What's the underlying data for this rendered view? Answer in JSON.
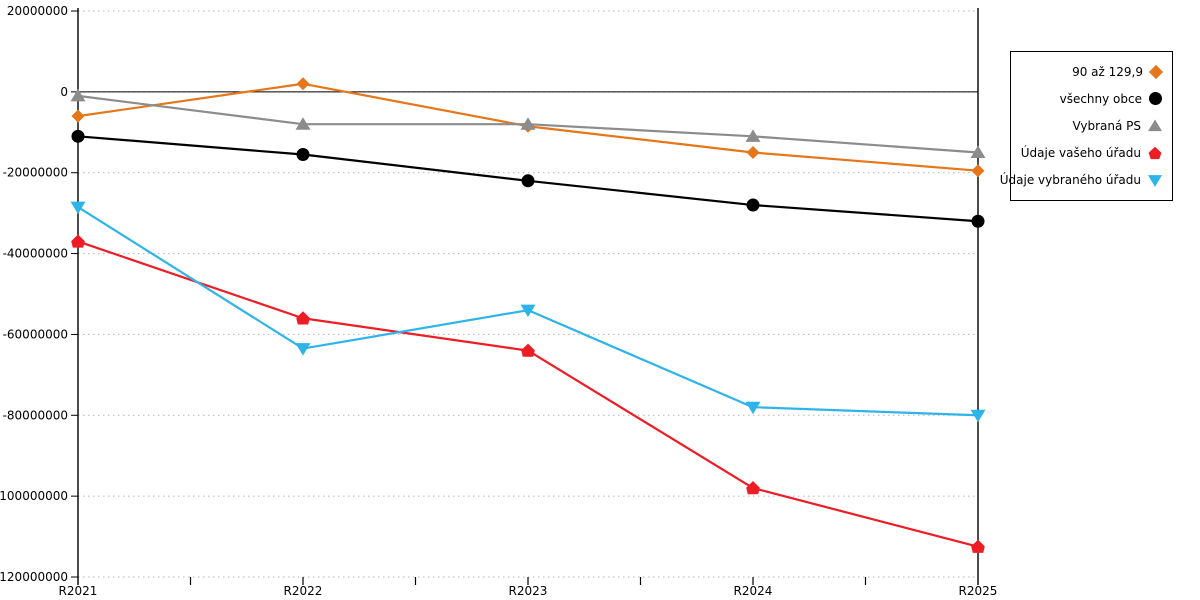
{
  "chart_data": {
    "type": "line",
    "title": "",
    "xlabel": "",
    "ylabel": "",
    "categories": [
      "R2021",
      "R2022",
      "R2023",
      "R2024",
      "R2025"
    ],
    "series": [
      {
        "name": "90 až 129,9",
        "marker": "diamond",
        "color": "#E6761A",
        "values": [
          -6000000,
          2000000,
          -8500000,
          -15000000,
          -19500000
        ]
      },
      {
        "name": "všechny obce",
        "marker": "circle",
        "color": "#000000",
        "values": [
          -11000000,
          -15500000,
          -22000000,
          -28000000,
          -32000000
        ]
      },
      {
        "name": "Vybraná PS",
        "marker": "triangle-up",
        "color": "#8C8C8C",
        "values": [
          -1000000,
          -8000000,
          -8000000,
          -11000000,
          -15000000
        ]
      },
      {
        "name": "Údaje vašeho úřadu",
        "marker": "pentagon-up",
        "color": "#EE1C25",
        "values": [
          -37000000,
          -56000000,
          -64000000,
          -98000000,
          -112500000
        ]
      },
      {
        "name": "Údaje vybraného úřadu",
        "marker": "triangle-down",
        "color": "#2FB4EA",
        "values": [
          -28500000,
          -63500000,
          -54000000,
          -78000000,
          -80000000
        ]
      }
    ],
    "ylim": [
      -120000000,
      20000000
    ],
    "ytick_step": 20000000,
    "ytick_labels": [
      "20000000",
      "0",
      "-20000000",
      "-40000000",
      "-60000000",
      "-80000000",
      "-100000000",
      "-120000000"
    ],
    "grid": "horizontal-dotted",
    "gridline_color": "#b5b5b5",
    "axis_color": "#000000",
    "legend_position": "right-top"
  }
}
